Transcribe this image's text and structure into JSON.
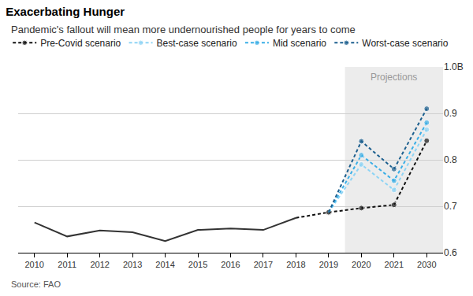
{
  "chart_data": {
    "type": "line",
    "title": "Exacerbating Hunger",
    "subtitle": "Pandemic's fallout will mean more undernourished people for years to come",
    "source": "Source: FAO",
    "annotations": [
      {
        "text": "Projections"
      }
    ],
    "categories": [
      "2010",
      "2011",
      "2012",
      "2013",
      "2014",
      "2015",
      "2016",
      "2017",
      "2018",
      "2019",
      "2020",
      "2021",
      "2030"
    ],
    "series": [
      {
        "color": "#333333",
        "line_style": "solid",
        "values": [
          0.665,
          0.635,
          0.648,
          0.644,
          0.625,
          0.649,
          0.652,
          0.649,
          0.675,
          null,
          null,
          null,
          null
        ]
      },
      {
        "name": "Pre-Covid scenario",
        "color": "#111111",
        "line_style": "dash",
        "marker": "circle",
        "values": [
          null,
          null,
          null,
          null,
          null,
          null,
          null,
          null,
          0.675,
          0.687,
          0.696,
          0.703,
          0.841
        ]
      },
      {
        "name": "Best-case scenario",
        "color": "#8ed4f5",
        "line_style": "dash",
        "marker": "circle",
        "values": [
          null,
          null,
          null,
          null,
          null,
          null,
          null,
          null,
          null,
          0.687,
          0.79,
          0.735,
          0.865
        ]
      },
      {
        "name": "Mid scenario",
        "color": "#3aaee6",
        "line_style": "dash",
        "marker": "circle",
        "values": [
          null,
          null,
          null,
          null,
          null,
          null,
          null,
          null,
          null,
          0.687,
          0.81,
          0.755,
          0.88
        ]
      },
      {
        "name": "Worst-case scenario",
        "color": "#1c5f8e",
        "line_style": "dash",
        "marker": "circle",
        "values": [
          null,
          null,
          null,
          null,
          null,
          null,
          null,
          null,
          null,
          0.687,
          0.84,
          0.78,
          0.91
        ]
      }
    ],
    "ylim": [
      0.6,
      1.0
    ],
    "yticks": [
      0.6,
      0.7,
      0.8,
      0.9,
      {
        "value": 1.0,
        "label": "1.0B"
      }
    ],
    "grid": true,
    "legend": "top left"
  }
}
